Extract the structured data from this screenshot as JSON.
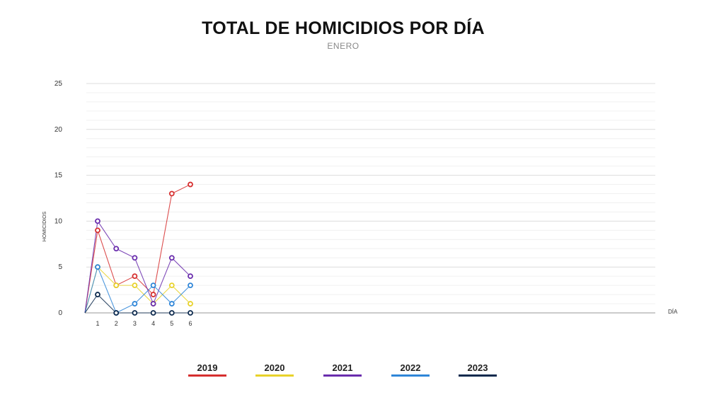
{
  "chart_data": {
    "type": "line",
    "title": "TOTAL DE HOMICIDIOS POR DÍA",
    "subtitle": "ENERO",
    "xlabel": "DÍA",
    "ylabel": "HOMICIDIOS",
    "ylim": [
      0,
      25
    ],
    "yticks": [
      "0",
      "5",
      "10",
      "15",
      "20",
      "25"
    ],
    "categories": [
      "1",
      "2",
      "3",
      "4",
      "5",
      "6"
    ],
    "grid": true,
    "legend_position": "bottom",
    "series": [
      {
        "name": "2019",
        "color": "#d62f2f",
        "values": [
          9,
          3,
          4,
          2,
          13,
          14
        ]
      },
      {
        "name": "2020",
        "color": "#e8d22a",
        "values": [
          5,
          3,
          3,
          1,
          3,
          1
        ]
      },
      {
        "name": "2021",
        "color": "#6a2dad",
        "values": [
          10,
          7,
          6,
          1,
          6,
          4
        ]
      },
      {
        "name": "2022",
        "color": "#2f86d8",
        "values": [
          5,
          0,
          1,
          3,
          1,
          3
        ]
      },
      {
        "name": "2023",
        "color": "#0d2a4e",
        "values": [
          2,
          0,
          0,
          0,
          0,
          0
        ]
      }
    ]
  }
}
